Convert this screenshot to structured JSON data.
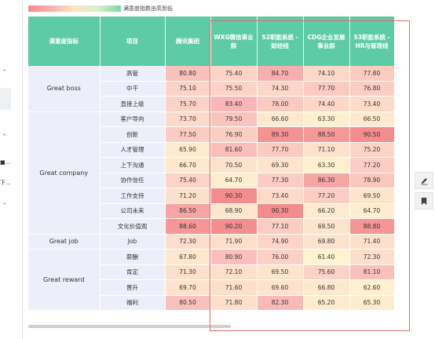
{
  "legend": {
    "label": "满意度指数由高到低"
  },
  "sidebar": {
    "items": [
      "■...",
      "下..."
    ]
  },
  "table": {
    "headers": [
      "满意度指标",
      "项目",
      "腾讯集团",
      "WXG微信事业群",
      "S2职能系统 - 财经线",
      "CDG企业发展事业群",
      "S3职能系统 - HR与管理线"
    ],
    "groups": [
      {
        "category": "Great boss",
        "rows": [
          {
            "item": "高管",
            "values": [
              "80.80",
              "75.40",
              "84.70",
              "74.10",
              "77.80"
            ]
          },
          {
            "item": "中干",
            "values": [
              "75.10",
              "75.50",
              "74.30",
              "77.70",
              "76.80"
            ]
          },
          {
            "item": "直接上级",
            "values": [
              "75.70",
              "83.40",
              "78.00",
              "74.40",
              "73.40"
            ]
          }
        ]
      },
      {
        "category": "Great company",
        "rows": [
          {
            "item": "客户导向",
            "values": [
              "73.70",
              "79.50",
              "66.60",
              "63.30",
              "66.50"
            ]
          },
          {
            "item": "创新",
            "values": [
              "77.50",
              "76.90",
              "89.30",
              "88.50",
              "90.50"
            ]
          },
          {
            "item": "人才管理",
            "values": [
              "65.90",
              "81.60",
              "77.70",
              "71.10",
              "75.20"
            ]
          },
          {
            "item": "上下沟通",
            "values": [
              "66.70",
              "70.50",
              "69.30",
              "63.30",
              "77.20"
            ]
          },
          {
            "item": "协作信任",
            "values": [
              "75.40",
              "64.70",
              "77.30",
              "86.30",
              "78.90"
            ]
          },
          {
            "item": "工作支持",
            "values": [
              "71.20",
              "90.30",
              "73.40",
              "77.20",
              "69.50"
            ]
          },
          {
            "item": "公司未来",
            "values": [
              "86.50",
              "68.90",
              "90.30",
              "66.20",
              "64.70"
            ]
          },
          {
            "item": "文化价值观",
            "values": [
              "88.60",
              "90.20",
              "77.10",
              "69.50",
              "88.80"
            ]
          }
        ]
      },
      {
        "category": "Great job",
        "rows": [
          {
            "item": "Job",
            "values": [
              "72.30",
              "71.90",
              "74.90",
              "69.80",
              "71.40"
            ]
          }
        ]
      },
      {
        "category": "Great reward",
        "rows": [
          {
            "item": "薪酬",
            "values": [
              "67.80",
              "80.90",
              "76.00",
              "61.40",
              "72.30"
            ]
          },
          {
            "item": "肯定",
            "values": [
              "71.30",
              "72.10",
              "69.50",
              "75.60",
              "81.10"
            ]
          },
          {
            "item": "晋升",
            "values": [
              "69.70",
              "71.60",
              "69.60",
              "66.80",
              "62.60"
            ]
          },
          {
            "item": "福利",
            "values": [
              "80.50",
              "71.80",
              "82.30",
              "65.20",
              "65.30"
            ]
          }
        ]
      }
    ]
  },
  "toolbar": {
    "edit_icon": "pencil-icon",
    "bookmark_icon": "bookmark-icon"
  }
}
